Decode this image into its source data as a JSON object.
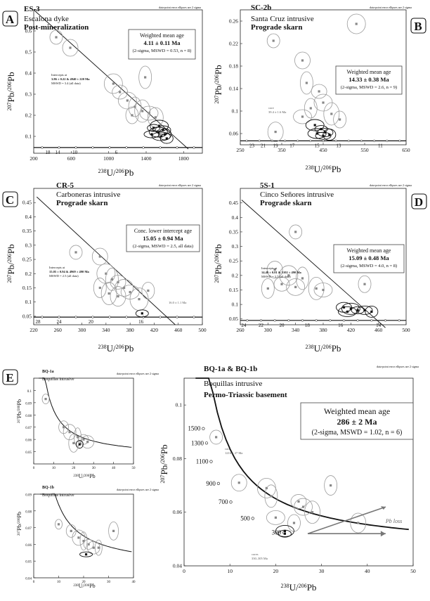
{
  "figure": {
    "panel_letters": [
      "A",
      "B",
      "C",
      "D",
      "E"
    ],
    "ellipse_note": "data-point error ellipses are 2 sigma"
  },
  "chart_data": [
    {
      "id": "A",
      "type": "scatter",
      "letter": "A",
      "sample": "ES-3",
      "unit": "Escalona dyke",
      "stage": "Post-mineralization",
      "box": {
        "title": "Weighted mean age",
        "value": "4.11 ± 0.11 Ma",
        "stats": "(2-sigma, MSWD = 0.53, n = 8)"
      },
      "intercept": {
        "lines": [
          "Intercepts at",
          "3.86 ± 0.22 & 4940 ± 220 Ma",
          "MSWD = 3.4 (all data)"
        ]
      },
      "xlim": [
        200,
        2000
      ],
      "ylim": [
        0.02,
        0.7
      ],
      "xticks": [
        200,
        600,
        1000,
        1400,
        1800
      ],
      "yticks": [
        0.1,
        0.2,
        0.3,
        0.4,
        0.5,
        0.6
      ],
      "xlabel_pre": "238",
      "xlabel_mid": "U/",
      "xlabel_sup2": "206",
      "xlabel_post": "Pb",
      "ylabel_pre": "207",
      "ylabel_mid": "Pb/",
      "ylabel_sup2": "206",
      "ylabel_post": "Pb",
      "concordia_y": 0.047,
      "age_labels": [
        "18",
        "14",
        "10",
        "6"
      ],
      "age_label_x": [
        350,
        455,
        640,
        1080
      ],
      "discordia": [
        [
          200,
          0.7
        ],
        [
          1850,
          0.04
        ]
      ],
      "points": [
        {
          "x": 440,
          "y": 0.57,
          "kind": "g"
        },
        {
          "x": 590,
          "y": 0.52,
          "kind": "g"
        },
        {
          "x": 1050,
          "y": 0.35,
          "kind": "g"
        },
        {
          "x": 1390,
          "y": 0.38,
          "kind": "g"
        },
        {
          "x": 1120,
          "y": 0.31,
          "kind": "g"
        },
        {
          "x": 1200,
          "y": 0.27,
          "kind": "g"
        },
        {
          "x": 1280,
          "y": 0.24,
          "kind": "g"
        },
        {
          "x": 1360,
          "y": 0.22,
          "kind": "g"
        },
        {
          "x": 1430,
          "y": 0.21,
          "kind": "g"
        },
        {
          "x": 1250,
          "y": 0.2,
          "kind": "g"
        },
        {
          "x": 1500,
          "y": 0.19,
          "kind": "g"
        },
        {
          "x": 1540,
          "y": 0.15,
          "kind": "k"
        },
        {
          "x": 1480,
          "y": 0.14,
          "kind": "k"
        },
        {
          "x": 1580,
          "y": 0.13,
          "kind": "k"
        },
        {
          "x": 1530,
          "y": 0.12,
          "kind": "k"
        },
        {
          "x": 1600,
          "y": 0.11,
          "kind": "k"
        },
        {
          "x": 1460,
          "y": 0.11,
          "kind": "k"
        },
        {
          "x": 1560,
          "y": 0.1,
          "kind": "k"
        },
        {
          "x": 1620,
          "y": 0.09,
          "kind": "k"
        }
      ]
    },
    {
      "id": "B",
      "type": "scatter",
      "letter": "B",
      "sample": "SC-2b",
      "unit": "Santa Cruz intrusive",
      "stage": "Prograde skarn",
      "box": {
        "title": "Weighted mean age",
        "value": "14.33 ± 0.38 Ma",
        "stats": "(2-sigma, MSWD = 2.6, n = 9)"
      },
      "note": {
        "lines": [
          "core",
          "39.4 ± 1.6 Ma"
        ]
      },
      "xlim": [
        250,
        650
      ],
      "ylim": [
        0.04,
        0.28
      ],
      "xticks": [
        250,
        350,
        450,
        550,
        650
      ],
      "yticks": [
        0.06,
        0.1,
        0.14,
        0.18,
        0.22,
        0.26
      ],
      "xlabel_pre": "238",
      "xlabel_mid": "U/",
      "xlabel_sup2": "206",
      "xlabel_post": "Pb",
      "ylabel_pre": "207",
      "ylabel_mid": "Pb/",
      "ylabel_sup2": "206",
      "ylabel_post": "Pb",
      "concordia_y": 0.047,
      "age_labels": [
        "23",
        "21",
        "19",
        "17",
        "15",
        "13",
        "11"
      ],
      "age_label_x": [
        278,
        305,
        335,
        375,
        435,
        487,
        588
      ],
      "points": [
        {
          "x": 330,
          "y": 0.225,
          "kind": "g"
        },
        {
          "x": 400,
          "y": 0.19,
          "kind": "g"
        },
        {
          "x": 530,
          "y": 0.255,
          "kind": "g"
        },
        {
          "x": 410,
          "y": 0.15,
          "kind": "g"
        },
        {
          "x": 440,
          "y": 0.135,
          "kind": "g"
        },
        {
          "x": 450,
          "y": 0.115,
          "kind": "g"
        },
        {
          "x": 420,
          "y": 0.105,
          "kind": "g"
        },
        {
          "x": 470,
          "y": 0.095,
          "kind": "g"
        },
        {
          "x": 400,
          "y": 0.09,
          "kind": "g"
        },
        {
          "x": 490,
          "y": 0.085,
          "kind": "g"
        },
        {
          "x": 335,
          "y": 0.063,
          "kind": "g"
        },
        {
          "x": 430,
          "y": 0.075,
          "kind": "k"
        },
        {
          "x": 445,
          "y": 0.068,
          "kind": "k"
        },
        {
          "x": 455,
          "y": 0.062,
          "kind": "k"
        },
        {
          "x": 435,
          "y": 0.06,
          "kind": "k"
        },
        {
          "x": 465,
          "y": 0.058,
          "kind": "k"
        },
        {
          "x": 450,
          "y": 0.056,
          "kind": "k"
        }
      ]
    },
    {
      "id": "C",
      "type": "scatter",
      "letter": "C",
      "sample": "CR-5",
      "unit": "Carboneras intrusive",
      "stage": "Prograde skarn",
      "box": {
        "title": "Conc. lower intercept age",
        "value": "15.05 ± 0.94 Ma",
        "stats": "(2-sigma, MSWD = 2.5, all data)"
      },
      "intercept": {
        "lines": [
          "Intercepts at",
          "15.05 ± 0.94 & 4969 ± 490 Ma",
          "MSWD = 2.5 (all data)"
        ]
      },
      "note": {
        "lines": [
          "16.0 ± 1.1 Ma"
        ]
      },
      "xlim": [
        220,
        500
      ],
      "ylim": [
        0.02,
        0.5
      ],
      "xticks": [
        220,
        260,
        300,
        340,
        380,
        420,
        460,
        500
      ],
      "yticks": [
        0.05,
        0.1,
        0.15,
        0.2,
        0.25,
        0.3,
        0.35,
        0.4,
        0.45
      ],
      "xlabel_pre": "238",
      "xlabel_mid": "U/",
      "xlabel_sup2": "206",
      "xlabel_post": "Pb",
      "ylabel_pre": "207",
      "ylabel_mid": "Pb/",
      "ylabel_sup2": "206",
      "ylabel_post": "Pb",
      "concordia_y": 0.047,
      "age_labels": [
        "28",
        "24",
        "20",
        "16"
      ],
      "age_label_x": [
        227,
        262,
        315,
        398
      ],
      "discordia": [
        [
          225,
          0.47
        ],
        [
          455,
          0.02
        ]
      ],
      "points": [
        {
          "x": 290,
          "y": 0.275,
          "kind": "g"
        },
        {
          "x": 330,
          "y": 0.26,
          "kind": "g"
        },
        {
          "x": 340,
          "y": 0.2,
          "kind": "g"
        },
        {
          "x": 350,
          "y": 0.18,
          "kind": "g"
        },
        {
          "x": 360,
          "y": 0.17,
          "kind": "g"
        },
        {
          "x": 370,
          "y": 0.15,
          "kind": "g"
        },
        {
          "x": 330,
          "y": 0.15,
          "kind": "g"
        },
        {
          "x": 345,
          "y": 0.13,
          "kind": "g"
        },
        {
          "x": 380,
          "y": 0.135,
          "kind": "g"
        },
        {
          "x": 410,
          "y": 0.14,
          "kind": "g"
        },
        {
          "x": 360,
          "y": 0.12,
          "kind": "g"
        },
        {
          "x": 395,
          "y": 0.11,
          "kind": "g"
        },
        {
          "x": 400,
          "y": 0.06,
          "kind": "k"
        }
      ]
    },
    {
      "id": "D",
      "type": "scatter",
      "letter": "D",
      "sample": "5S-1",
      "unit": "Cinco Señores intrusive",
      "stage": "Prograde skarn",
      "box": {
        "title": "Weighted mean age",
        "value": "15.09 ± 0.48 Ma",
        "stats": "(2-sigma, MSWD = 4.0, n = 8)"
      },
      "intercept": {
        "lines": [
          "Intercepts at",
          "14.49 ± 0.81 & 5102 ± 490 Ma",
          "MSWD = 3.7 (all data)"
        ]
      },
      "xlim": [
        260,
        500
      ],
      "ylim": [
        0.03,
        0.5
      ],
      "xticks": [
        260,
        300,
        340,
        380,
        420,
        460,
        500
      ],
      "yticks": [
        0.05,
        0.1,
        0.15,
        0.2,
        0.25,
        0.3,
        0.35,
        0.4,
        0.45
      ],
      "xlabel_pre": "238",
      "xlabel_mid": "U/",
      "xlabel_sup2": "206",
      "xlabel_post": "Pb",
      "ylabel_pre": "207",
      "ylabel_mid": "Pb/",
      "ylabel_sup2": "206",
      "ylabel_post": "Pb",
      "concordia_y": 0.045,
      "age_labels": [
        "24",
        "22",
        "20",
        "18",
        "16",
        "14"
      ],
      "age_label_x": [
        265,
        290,
        320,
        357,
        405,
        460
      ],
      "discordia": [
        [
          262,
          0.46
        ],
        [
          470,
          0.02
        ]
      ],
      "points": [
        {
          "x": 340,
          "y": 0.35,
          "kind": "g"
        },
        {
          "x": 310,
          "y": 0.22,
          "kind": "g"
        },
        {
          "x": 330,
          "y": 0.2,
          "kind": "g"
        },
        {
          "x": 350,
          "y": 0.19,
          "kind": "g"
        },
        {
          "x": 320,
          "y": 0.17,
          "kind": "g"
        },
        {
          "x": 340,
          "y": 0.16,
          "kind": "g"
        },
        {
          "x": 300,
          "y": 0.155,
          "kind": "g"
        },
        {
          "x": 370,
          "y": 0.155,
          "kind": "g"
        },
        {
          "x": 380,
          "y": 0.15,
          "kind": "g"
        },
        {
          "x": 440,
          "y": 0.17,
          "kind": "g"
        },
        {
          "x": 410,
          "y": 0.09,
          "kind": "k"
        },
        {
          "x": 420,
          "y": 0.085,
          "kind": "k"
        },
        {
          "x": 430,
          "y": 0.08,
          "kind": "k"
        },
        {
          "x": 440,
          "y": 0.08,
          "kind": "k"
        },
        {
          "x": 415,
          "y": 0.075,
          "kind": "k"
        },
        {
          "x": 450,
          "y": 0.075,
          "kind": "k"
        }
      ]
    },
    {
      "id": "E1",
      "type": "scatter",
      "letter": "E",
      "sample": "BQ-1a",
      "unit": "Boquillas intrusive",
      "xlim": [
        0,
        50
      ],
      "ylim": [
        0.04,
        0.11
      ],
      "xticks": [
        0,
        10,
        20,
        30,
        40,
        50
      ],
      "yticks": [
        0.05,
        0.06,
        0.07,
        0.08,
        0.09,
        0.1
      ],
      "xlabel_pre": "238",
      "xlabel_mid": "U/",
      "xlabel_sup2": "206",
      "xlabel_post": "Pb",
      "ylabel_pre": "207",
      "ylabel_mid": "Pb/",
      "ylabel_sup2": "206",
      "ylabel_post": "Pb",
      "points": [
        {
          "x": 6,
          "y": 0.093,
          "kind": "g"
        },
        {
          "x": 15,
          "y": 0.07,
          "kind": "g"
        },
        {
          "x": 18,
          "y": 0.066,
          "kind": "g"
        },
        {
          "x": 22,
          "y": 0.062,
          "kind": "g"
        },
        {
          "x": 25,
          "y": 0.06,
          "kind": "g"
        },
        {
          "x": 27,
          "y": 0.058,
          "kind": "g"
        },
        {
          "x": 23,
          "y": 0.056,
          "kind": "k"
        },
        {
          "x": 20,
          "y": 0.057,
          "kind": "g"
        }
      ]
    },
    {
      "id": "E2",
      "type": "scatter",
      "sample": "BQ-1b",
      "unit": "Boquillas intrusive",
      "xlim": [
        0,
        40
      ],
      "ylim": [
        0.04,
        0.09
      ],
      "xticks": [
        0,
        10,
        20,
        30,
        40
      ],
      "yticks": [
        0.04,
        0.05,
        0.06,
        0.07,
        0.08,
        0.09
      ],
      "xlabel_pre": "238",
      "xlabel_mid": "U/",
      "xlabel_sup2": "206",
      "xlabel_post": "Pb",
      "ylabel_pre": "207",
      "ylabel_mid": "Pb/",
      "ylabel_sup2": "206",
      "ylabel_post": "Pb",
      "points": [
        {
          "x": 10,
          "y": 0.072,
          "kind": "g"
        },
        {
          "x": 15,
          "y": 0.068,
          "kind": "g"
        },
        {
          "x": 18,
          "y": 0.064,
          "kind": "g"
        },
        {
          "x": 20,
          "y": 0.062,
          "kind": "g"
        },
        {
          "x": 22,
          "y": 0.06,
          "kind": "g"
        },
        {
          "x": 24,
          "y": 0.058,
          "kind": "g"
        },
        {
          "x": 26,
          "y": 0.058,
          "kind": "g"
        },
        {
          "x": 32,
          "y": 0.068,
          "kind": "g"
        },
        {
          "x": 21,
          "y": 0.054,
          "kind": "k"
        }
      ]
    },
    {
      "id": "E3",
      "type": "scatter",
      "sample": "BQ-1a & BQ-1b",
      "unit": "Boquillas intrusive",
      "stage": "Permo-Triassic basement",
      "box": {
        "title": "Weighted mean age",
        "value": "286 ± 2 Ma",
        "stats": "(2-sigma, MSWD = 1.02, n = 6)"
      },
      "note": {
        "lines": [
          "core",
          "1216 ± 27 Ma"
        ]
      },
      "note2": {
        "lines": [
          "cores",
          "330–305 Ma"
        ]
      },
      "pb_loss": "Pb loss",
      "xlim": [
        0,
        50
      ],
      "ylim": [
        0.04,
        0.11
      ],
      "xticks": [
        0,
        10,
        20,
        30,
        40,
        50
      ],
      "yticks": [
        0.04,
        0.06,
        0.08,
        0.1
      ],
      "xlabel_pre": "238",
      "xlabel_mid": "U/",
      "xlabel_sup2": "206",
      "xlabel_post": "Pb",
      "ylabel_pre": "207",
      "ylabel_mid": "Pb/",
      "ylabel_sup2": "206",
      "ylabel_post": "Pb",
      "age_labels": [
        "1500",
        "1300",
        "1100",
        "900",
        "700",
        "500",
        "300"
      ],
      "age_label_pos": [
        [
          4.2,
          0.0912
        ],
        [
          4.9,
          0.0858
        ],
        [
          5.9,
          0.0789
        ],
        [
          7.5,
          0.0707
        ],
        [
          10.2,
          0.0638
        ],
        [
          15.0,
          0.0577
        ],
        [
          21.8,
          0.0524
        ]
      ],
      "points": [
        {
          "x": 7,
          "y": 0.088,
          "kind": "g"
        },
        {
          "x": 12,
          "y": 0.071,
          "kind": "g"
        },
        {
          "x": 18,
          "y": 0.069,
          "kind": "g"
        },
        {
          "x": 19,
          "y": 0.066,
          "kind": "g"
        },
        {
          "x": 25,
          "y": 0.064,
          "kind": "g"
        },
        {
          "x": 26,
          "y": 0.062,
          "kind": "g"
        },
        {
          "x": 32,
          "y": 0.07,
          "kind": "g"
        },
        {
          "x": 28,
          "y": 0.06,
          "kind": "g"
        },
        {
          "x": 20,
          "y": 0.058,
          "kind": "g"
        },
        {
          "x": 24,
          "y": 0.056,
          "kind": "g"
        },
        {
          "x": 38,
          "y": 0.056,
          "kind": "g"
        },
        {
          "x": 22,
          "y": 0.053,
          "kind": "k"
        },
        {
          "x": 22,
          "y": 0.052,
          "kind": "k"
        }
      ]
    }
  ]
}
